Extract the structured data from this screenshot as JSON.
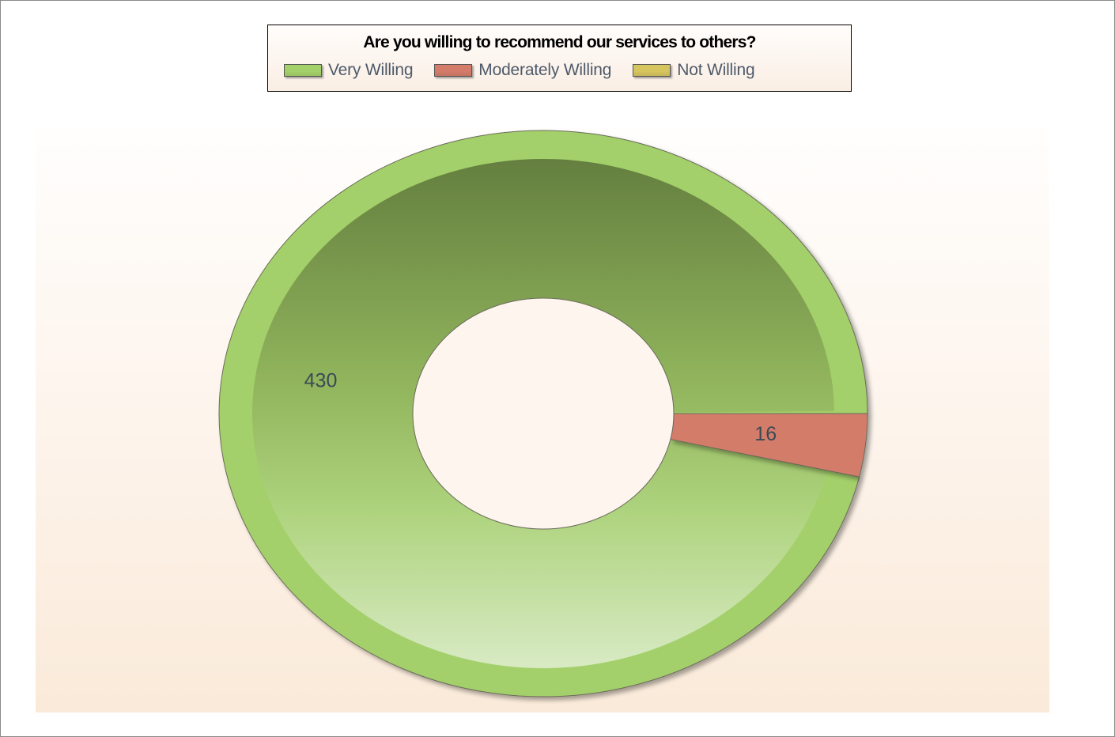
{
  "chart_data": {
    "type": "pie",
    "title": "Are you willing to recommend our services to others?",
    "categories": [
      "Very Willing",
      "Moderately Willing",
      "Not Willing"
    ],
    "values": [
      430,
      16,
      0
    ],
    "colors": [
      "#a3d06a",
      "#d47b6a",
      "#d6c45e"
    ],
    "data_labels": [
      "430",
      "16",
      ""
    ],
    "legend_placement": "top-center",
    "donut": true
  }
}
